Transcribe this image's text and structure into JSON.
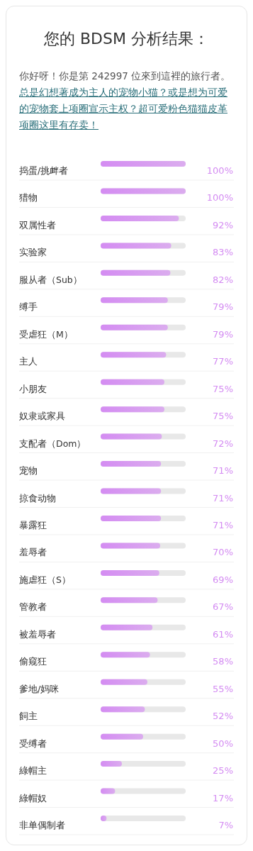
{
  "chart_data": {
    "type": "bar",
    "orientation": "horizontal",
    "title": "您的 BDSM 分析结果：",
    "subtitle": "你好呀！你是第 242997 位來到這裡的旅行者。",
    "annotations": [
      "总是幻想著成为主人的宠物小猫？或是想为可爱的宠物套上项圈宣示主权？超可爱粉色猫猫皮革项圈这里有存卖！"
    ],
    "categories": [
      "捣蛋/挑衅者",
      "猎物",
      "双属性者",
      "实验家",
      "服从者（Sub）",
      "缚手",
      "受虐狂（M）",
      "主人",
      "小朋友",
      "奴隶或家具",
      "支配者（Dom）",
      "宠物",
      "掠食动物",
      "暴露狂",
      "羞辱者",
      "施虐狂（S）",
      "管教者",
      "被羞辱者",
      "偷窥狂",
      "爹地/妈咪",
      "飼主",
      "受缚者",
      "綠帽主",
      "綠帽奴",
      "非单偶制者"
    ],
    "values": [
      100,
      100,
      92,
      83,
      82,
      79,
      79,
      77,
      75,
      75,
      72,
      71,
      71,
      71,
      70,
      69,
      67,
      61,
      58,
      55,
      52,
      50,
      25,
      17,
      7
    ],
    "value_labels": [
      "100%",
      "100%",
      "92%",
      "83%",
      "82%",
      "79%",
      "79%",
      "77%",
      "75%",
      "75%",
      "72%",
      "71%",
      "71%",
      "71%",
      "70%",
      "69%",
      "67%",
      "61%",
      "58%",
      "55%",
      "52%",
      "50%",
      "25%",
      "17%",
      "7%"
    ],
    "color": "#d48cf2",
    "xlim": [
      0,
      100
    ]
  }
}
